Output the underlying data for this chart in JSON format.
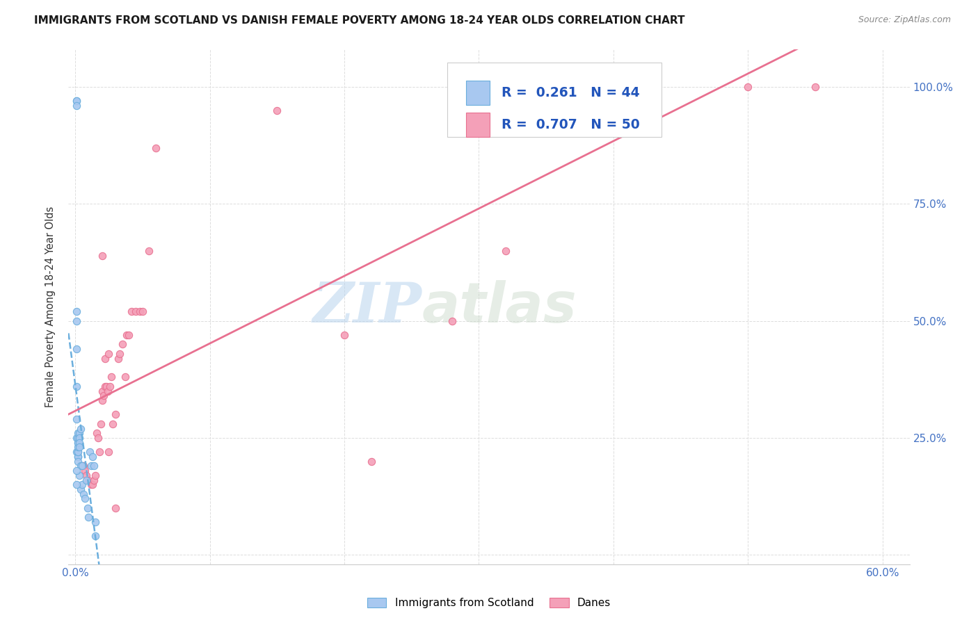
{
  "title": "IMMIGRANTS FROM SCOTLAND VS DANISH FEMALE POVERTY AMONG 18-24 YEAR OLDS CORRELATION CHART",
  "source": "Source: ZipAtlas.com",
  "ylabel": "Female Poverty Among 18-24 Year Olds",
  "xlim": [
    -0.005,
    0.62
  ],
  "ylim": [
    -0.02,
    1.08
  ],
  "yticks": [
    0.0,
    0.25,
    0.5,
    0.75,
    1.0
  ],
  "ytick_labels": [
    "",
    "25.0%",
    "50.0%",
    "75.0%",
    "100.0%"
  ],
  "xticks": [
    0.0,
    0.1,
    0.2,
    0.3,
    0.4,
    0.5,
    0.6
  ],
  "xtick_labels": [
    "0.0%",
    "",
    "",
    "",
    "",
    "",
    "60.0%"
  ],
  "watermark_zip": "ZIP",
  "watermark_atlas": "atlas",
  "scotland_color": "#a8c8f0",
  "danes_color": "#f4a0b8",
  "scotland_edge_color": "#6aaedd",
  "danes_edge_color": "#e87090",
  "scotland_line_color": "#6aaedd",
  "danes_line_color": "#e87090",
  "scotland_R": 0.261,
  "scotland_N": 44,
  "danes_R": 0.707,
  "danes_N": 50,
  "scotland_scatter_x": [
    0.001,
    0.001,
    0.001,
    0.001,
    0.001,
    0.001,
    0.001,
    0.001,
    0.001,
    0.001,
    0.002,
    0.002,
    0.002,
    0.002,
    0.002,
    0.002,
    0.002,
    0.002,
    0.002,
    0.002,
    0.002,
    0.003,
    0.003,
    0.003,
    0.003,
    0.003,
    0.004,
    0.004,
    0.004,
    0.005,
    0.005,
    0.006,
    0.007,
    0.008,
    0.009,
    0.01,
    0.011,
    0.012,
    0.013,
    0.014,
    0.015,
    0.015,
    0.001,
    0.001
  ],
  "scotland_scatter_y": [
    0.97,
    0.97,
    0.96,
    0.52,
    0.5,
    0.44,
    0.36,
    0.29,
    0.25,
    0.22,
    0.21,
    0.21,
    0.21,
    0.22,
    0.22,
    0.23,
    0.24,
    0.24,
    0.25,
    0.26,
    0.2,
    0.26,
    0.25,
    0.24,
    0.23,
    0.17,
    0.27,
    0.19,
    0.14,
    0.15,
    0.19,
    0.13,
    0.12,
    0.16,
    0.1,
    0.08,
    0.22,
    0.19,
    0.21,
    0.19,
    0.04,
    0.07,
    0.18,
    0.15
  ],
  "danes_scatter_x": [
    0.005,
    0.006,
    0.007,
    0.008,
    0.01,
    0.012,
    0.013,
    0.014,
    0.015,
    0.016,
    0.017,
    0.018,
    0.019,
    0.02,
    0.02,
    0.021,
    0.022,
    0.022,
    0.023,
    0.024,
    0.025,
    0.026,
    0.027,
    0.028,
    0.03,
    0.032,
    0.033,
    0.035,
    0.037,
    0.038,
    0.04,
    0.042,
    0.045,
    0.048,
    0.05,
    0.055,
    0.06,
    0.02,
    0.025,
    0.03,
    0.35,
    0.38,
    0.42,
    0.5,
    0.55,
    0.2,
    0.28,
    0.32,
    0.22,
    0.15
  ],
  "danes_scatter_y": [
    0.19,
    0.19,
    0.18,
    0.17,
    0.16,
    0.15,
    0.15,
    0.16,
    0.17,
    0.26,
    0.25,
    0.22,
    0.28,
    0.33,
    0.35,
    0.34,
    0.36,
    0.42,
    0.36,
    0.35,
    0.43,
    0.36,
    0.38,
    0.28,
    0.3,
    0.42,
    0.43,
    0.45,
    0.38,
    0.47,
    0.47,
    0.52,
    0.52,
    0.52,
    0.52,
    0.65,
    0.87,
    0.64,
    0.22,
    0.1,
    1.0,
    1.0,
    1.0,
    1.0,
    1.0,
    0.47,
    0.5,
    0.65,
    0.2,
    0.95
  ],
  "background_color": "#ffffff",
  "grid_color": "#dddddd",
  "tick_color": "#4472c4",
  "title_color": "#1a1a1a",
  "source_color": "#888888"
}
